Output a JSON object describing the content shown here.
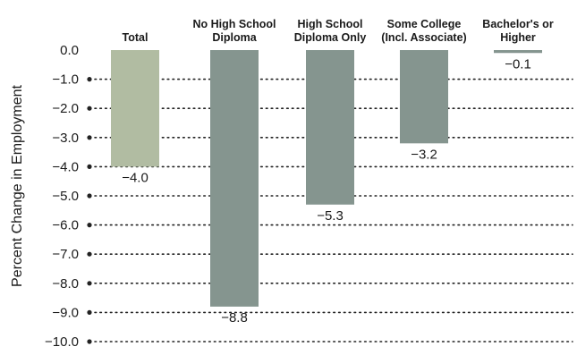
{
  "chart_data": {
    "type": "bar",
    "categories": [
      [
        "Total"
      ],
      [
        "No High School",
        "Diploma"
      ],
      [
        "High School",
        "Diploma Only"
      ],
      [
        "Some College",
        "(Incl. Associate)"
      ],
      [
        "Bachelor's or",
        "Higher"
      ]
    ],
    "values": [
      -4.0,
      -8.8,
      -5.3,
      -3.2,
      -0.1
    ],
    "value_labels": [
      "-4.0",
      "-8.8",
      "-5.3",
      "-3.2",
      "-0.1"
    ],
    "ylabel": "Percent Change in Employment",
    "ylim": [
      -10.0,
      0.0
    ],
    "yticks": [
      0.0,
      -1.0,
      -2.0,
      -3.0,
      -4.0,
      -5.0,
      -6.0,
      -7.0,
      -8.0,
      -9.0,
      -10.0
    ],
    "ytick_labels": [
      "0.0",
      "-1.0",
      "-2.0",
      "-3.0",
      "-4.0",
      "-5.0",
      "-6.0",
      "-7.0",
      "-8.0",
      "-9.0",
      "-10.0"
    ],
    "grid": "dotted horizontal",
    "colors": {
      "highlight": "#b1bca2",
      "bars": "#85958f",
      "grid": "#222222",
      "text": "#1a1a1a"
    }
  }
}
